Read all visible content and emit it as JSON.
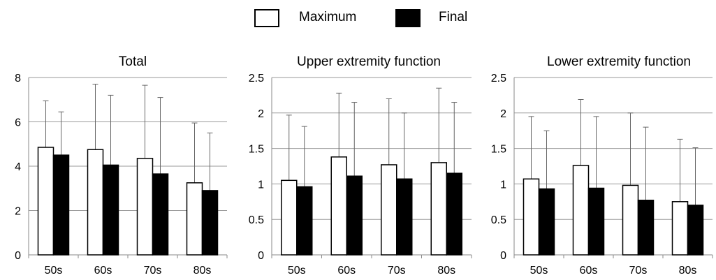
{
  "legend": {
    "maximum_label": "Maximum",
    "final_label": "Final",
    "maximum_color": "#ffffff",
    "final_color": "#000000"
  },
  "chart_data": [
    {
      "type": "bar",
      "title": "Total",
      "categories": [
        "50s",
        "60s",
        "70s",
        "80s"
      ],
      "ylim": [
        0,
        8
      ],
      "yticks": [
        0,
        2,
        4,
        6,
        8
      ],
      "ytick_labels": [
        "0",
        "2",
        "4",
        "6",
        "8"
      ],
      "grid": true,
      "series": [
        {
          "name": "Maximum",
          "values": [
            4.85,
            4.75,
            4.35,
            3.25
          ],
          "error_upper": [
            6.95,
            7.7,
            7.65,
            5.95
          ]
        },
        {
          "name": "Final",
          "values": [
            4.5,
            4.05,
            3.65,
            2.9
          ],
          "error_upper": [
            6.45,
            7.2,
            7.1,
            5.5
          ]
        }
      ]
    },
    {
      "type": "bar",
      "title": "Upper extremity function",
      "categories": [
        "50s",
        "60s",
        "70s",
        "80s"
      ],
      "ylim": [
        0,
        2.5
      ],
      "yticks": [
        0,
        0.5,
        1,
        1.5,
        2,
        2.5
      ],
      "ytick_labels": [
        "0",
        "0.5",
        "1",
        "1.5",
        "2",
        "2.5"
      ],
      "grid": true,
      "series": [
        {
          "name": "Maximum",
          "values": [
            1.05,
            1.38,
            1.27,
            1.3
          ],
          "error_upper": [
            1.97,
            2.28,
            2.2,
            2.35
          ]
        },
        {
          "name": "Final",
          "values": [
            0.96,
            1.11,
            1.07,
            1.15
          ],
          "error_upper": [
            1.81,
            2.15,
            2.0,
            2.15
          ]
        }
      ]
    },
    {
      "type": "bar",
      "title": "Lower extremity function",
      "categories": [
        "50s",
        "60s",
        "70s",
        "80s"
      ],
      "ylim": [
        0,
        2.5
      ],
      "yticks": [
        0,
        0.5,
        1,
        1.5,
        2,
        2.5
      ],
      "ytick_labels": [
        "0",
        "0.5",
        "1",
        "1.5",
        "2",
        "2.5"
      ],
      "grid": true,
      "series": [
        {
          "name": "Maximum",
          "values": [
            1.07,
            1.26,
            0.98,
            0.75
          ],
          "error_upper": [
            1.95,
            2.19,
            2.0,
            1.63
          ]
        },
        {
          "name": "Final",
          "values": [
            0.93,
            0.94,
            0.77,
            0.7
          ],
          "error_upper": [
            1.75,
            1.95,
            1.8,
            1.51
          ]
        }
      ]
    }
  ]
}
